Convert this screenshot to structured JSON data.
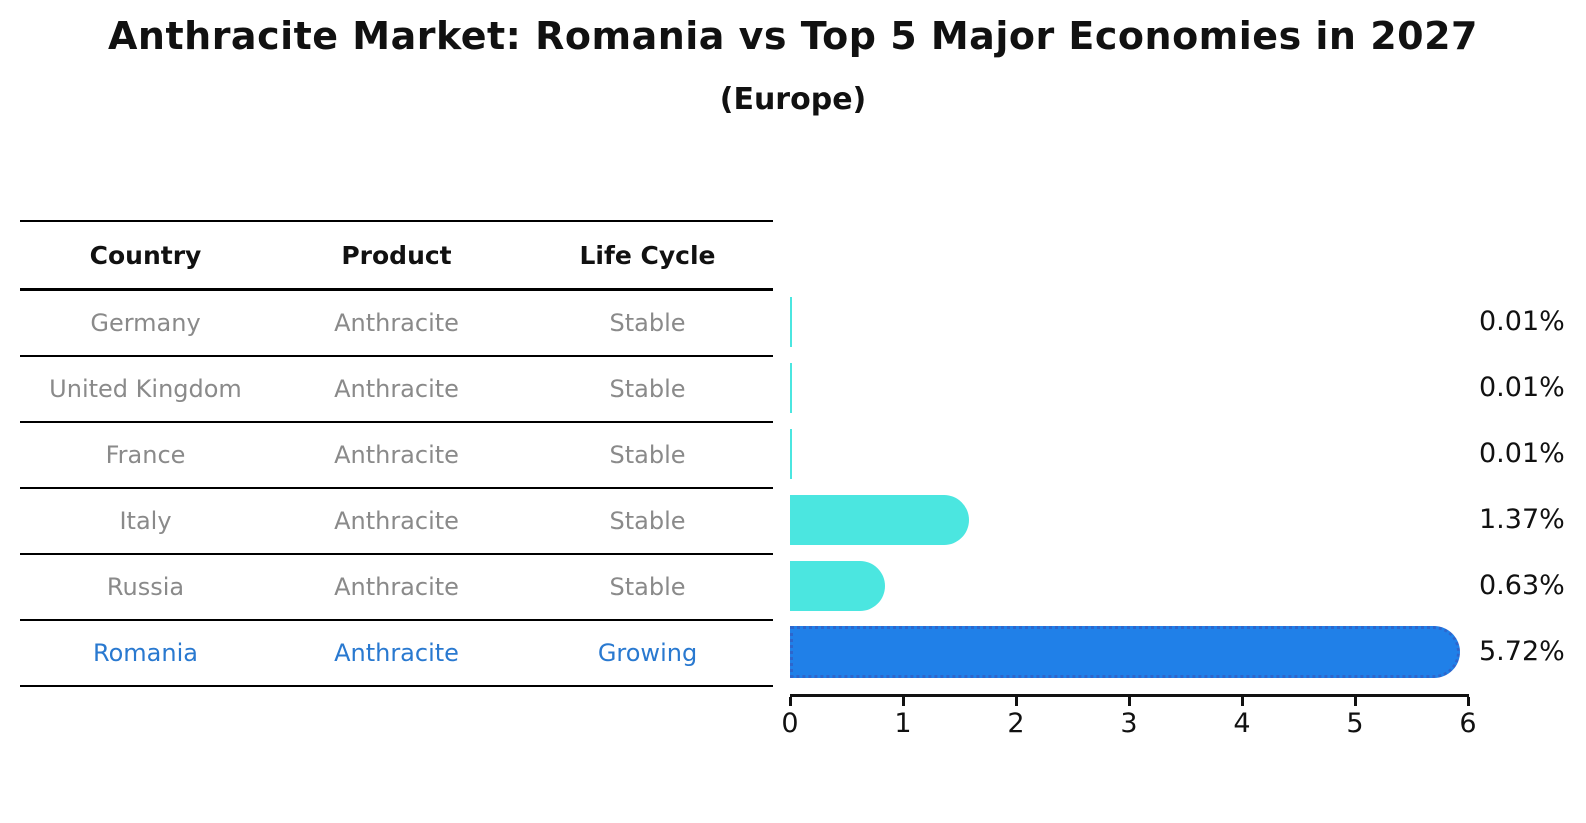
{
  "title": "Anthracite Market: Romania vs Top 5 Major Economies in 2027",
  "subtitle": "(Europe)",
  "table": {
    "headers": [
      "Country",
      "Product",
      "Life Cycle"
    ],
    "rows": [
      {
        "country": "Germany",
        "product": "Anthracite",
        "life_cycle": "Stable"
      },
      {
        "country": "United Kingdom",
        "product": "Anthracite",
        "life_cycle": "Stable"
      },
      {
        "country": "France",
        "product": "Anthracite",
        "life_cycle": "Stable"
      },
      {
        "country": "Italy",
        "product": "Anthracite",
        "life_cycle": "Stable"
      },
      {
        "country": "Russia",
        "product": "Anthracite",
        "life_cycle": "Stable"
      },
      {
        "country": "Romania",
        "product": "Anthracite",
        "life_cycle": "Growing"
      }
    ]
  },
  "chart_data": {
    "type": "bar",
    "orientation": "horizontal",
    "categories": [
      "Germany",
      "United Kingdom",
      "France",
      "Italy",
      "Russia",
      "Romania"
    ],
    "values": [
      0.01,
      0.01,
      0.01,
      1.37,
      0.63,
      5.72
    ],
    "labels": [
      "0.01%",
      "0.01%",
      "0.01%",
      "1.37%",
      "0.63%",
      "5.72%"
    ],
    "title": "Anthracite Market: Romania vs Top 5 Major Economies in 2027",
    "subtitle": "(Europe)",
    "xlabel": "",
    "ylabel": "",
    "xlim": [
      0,
      6
    ],
    "xticks": [
      "0",
      "1",
      "2",
      "3",
      "4",
      "5",
      "6"
    ],
    "grid": false,
    "legend": false,
    "bar_colors": [
      "#4be6e0",
      "#4be6e0",
      "#4be6e0",
      "#4be6e0",
      "#4be6e0",
      "#2080e8"
    ],
    "base_color": "#4be6e0",
    "highlight_index": 5,
    "highlight_color": "#2080e8",
    "highlight_border_color": "#2e66cc",
    "highlight_text_color": "#2979d0",
    "row_text_color": "#8a8a8a"
  }
}
